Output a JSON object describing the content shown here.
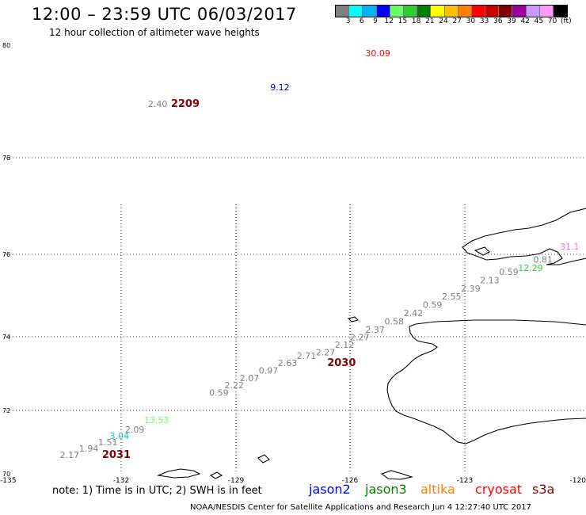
{
  "header": {
    "title": "12:00 – 23:59 UTC 06/03/2017",
    "subtitle": "12 hour collection of altimeter wave heights"
  },
  "colorbar": {
    "colors": [
      "#808080",
      "#00ffff",
      "#00b4ff",
      "#0000ff",
      "#66ff66",
      "#33cc33",
      "#008000",
      "#ffff00",
      "#ffc000",
      "#ff8000",
      "#ff0000",
      "#cc0000",
      "#800000",
      "#990099",
      "#cc99ff",
      "#ff99ff",
      "#000000"
    ],
    "labels": [
      "3",
      "6",
      "9",
      "12",
      "15",
      "18",
      "21",
      "24",
      "27",
      "30",
      "33",
      "36",
      "39",
      "42",
      "45",
      "70",
      "(ft)"
    ]
  },
  "axes": {
    "lat_labels": [
      "80",
      "78",
      "76",
      "74",
      "72",
      "70"
    ],
    "lon_labels": [
      "-135",
      "-132",
      "-129",
      "-126",
      "-123",
      "-120"
    ]
  },
  "map": {
    "lat_range": [
      70,
      80
    ],
    "lon_range": [
      -135,
      -120
    ],
    "observations": [
      {
        "text": "30.09",
        "color": "#ff0000",
        "lon": -125.6,
        "lat": 79.8
      },
      {
        "text": "9.12",
        "color": "#0000cc",
        "lon": -128.1,
        "lat": 79.2
      },
      {
        "text": "2.40",
        "color": "#808080",
        "lon": -131.3,
        "lat": 78.9
      },
      {
        "text": "31.1",
        "color": "#ff66ff",
        "lon": -120.5,
        "lat": 76.1
      },
      {
        "text": "0.81",
        "color": "#808080",
        "lon": -121.2,
        "lat": 75.8
      },
      {
        "text": "12.29",
        "color": "#33cc33",
        "lon": -121.6,
        "lat": 75.6
      },
      {
        "text": "0.59",
        "color": "#808080",
        "lon": -122.1,
        "lat": 75.5
      },
      {
        "text": "2.13",
        "color": "#808080",
        "lon": -122.6,
        "lat": 75.3
      },
      {
        "text": "2.39",
        "color": "#808080",
        "lon": -123.1,
        "lat": 75.1
      },
      {
        "text": "2.55",
        "color": "#808080",
        "lon": -123.6,
        "lat": 74.9
      },
      {
        "text": "0.59",
        "color": "#808080",
        "lon": -124.1,
        "lat": 74.7
      },
      {
        "text": "2.42",
        "color": "#808080",
        "lon": -124.6,
        "lat": 74.5
      },
      {
        "text": "0.58",
        "color": "#808080",
        "lon": -125.1,
        "lat": 74.3
      },
      {
        "text": "2.37",
        "color": "#808080",
        "lon": -125.6,
        "lat": 74.1
      },
      {
        "text": "2.27",
        "color": "#808080",
        "lon": -126.0,
        "lat": 73.9
      },
      {
        "text": "2.12",
        "color": "#808080",
        "lon": -126.4,
        "lat": 73.7
      },
      {
        "text": "2.27",
        "color": "#808080",
        "lon": -126.9,
        "lat": 73.5
      },
      {
        "text": "2.71",
        "color": "#808080",
        "lon": -127.4,
        "lat": 73.4
      },
      {
        "text": "2.63",
        "color": "#808080",
        "lon": -127.9,
        "lat": 73.2
      },
      {
        "text": "0.97",
        "color": "#808080",
        "lon": -128.4,
        "lat": 73.0
      },
      {
        "text": "2.07",
        "color": "#808080",
        "lon": -128.9,
        "lat": 72.8
      },
      {
        "text": "2.22",
        "color": "#808080",
        "lon": -129.3,
        "lat": 72.6
      },
      {
        "text": "0.59",
        "color": "#808080",
        "lon": -129.7,
        "lat": 72.4
      },
      {
        "text": "13.53",
        "color": "#66ff66",
        "lon": -131.4,
        "lat": 71.6
      },
      {
        "text": "2.09",
        "color": "#808080",
        "lon": -131.9,
        "lat": 71.3
      },
      {
        "text": "3.04",
        "color": "#00cccc",
        "lon": -132.3,
        "lat": 71.1
      },
      {
        "text": "1.51",
        "color": "#808080",
        "lon": -132.6,
        "lat": 70.9
      },
      {
        "text": "1.94",
        "color": "#808080",
        "lon": -133.1,
        "lat": 70.7
      },
      {
        "text": "2.17",
        "color": "#808080",
        "lon": -133.6,
        "lat": 70.5
      }
    ],
    "pass_times": [
      {
        "text": "2209",
        "color": "#800000",
        "lon": -130.7,
        "lat": 78.9
      },
      {
        "text": "2030",
        "color": "#800000",
        "lon": -126.6,
        "lat": 73.2
      },
      {
        "text": "2031",
        "color": "#800000",
        "lon": -132.5,
        "lat": 70.5
      }
    ]
  },
  "footer": {
    "note": "note: 1) Time is in UTC; 2) SWH is in feet",
    "satellites": [
      {
        "name": "jason2",
        "color": "#0000ff"
      },
      {
        "name": "jason3",
        "color": "#008000"
      },
      {
        "name": "altika",
        "color": "#ff8000"
      },
      {
        "name": "cryosat",
        "color": "#ff0000"
      },
      {
        "name": "s3a",
        "color": "#800000"
      }
    ],
    "credit": "NOAA/NESDIS Center for Satellite Applications and Research    Jun  4 12:27:40 UTC 2017"
  }
}
